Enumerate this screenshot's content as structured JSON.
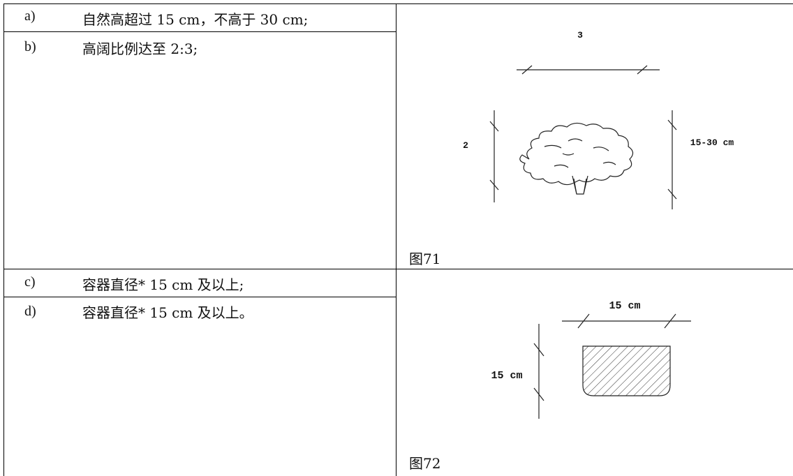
{
  "rows": [
    {
      "items": [
        {
          "label": "a)",
          "text": "自然高超过 15 cm，不高于 30 cm;"
        },
        {
          "label": "b)",
          "text": "高阔比例达至 2:3;"
        }
      ],
      "figure": {
        "width_label": "3",
        "height_label": "2",
        "size_label": "15-30 cm",
        "caption": "图71"
      }
    },
    {
      "items": [
        {
          "label": "c)",
          "text": "容器直径* 15 cm 及以上;"
        },
        {
          "label": "d)",
          "text": "容器直径* 15 cm 及以上。"
        }
      ],
      "figure": {
        "width_label": "15 cm",
        "height_label": "15 cm",
        "caption": "图72"
      }
    }
  ]
}
